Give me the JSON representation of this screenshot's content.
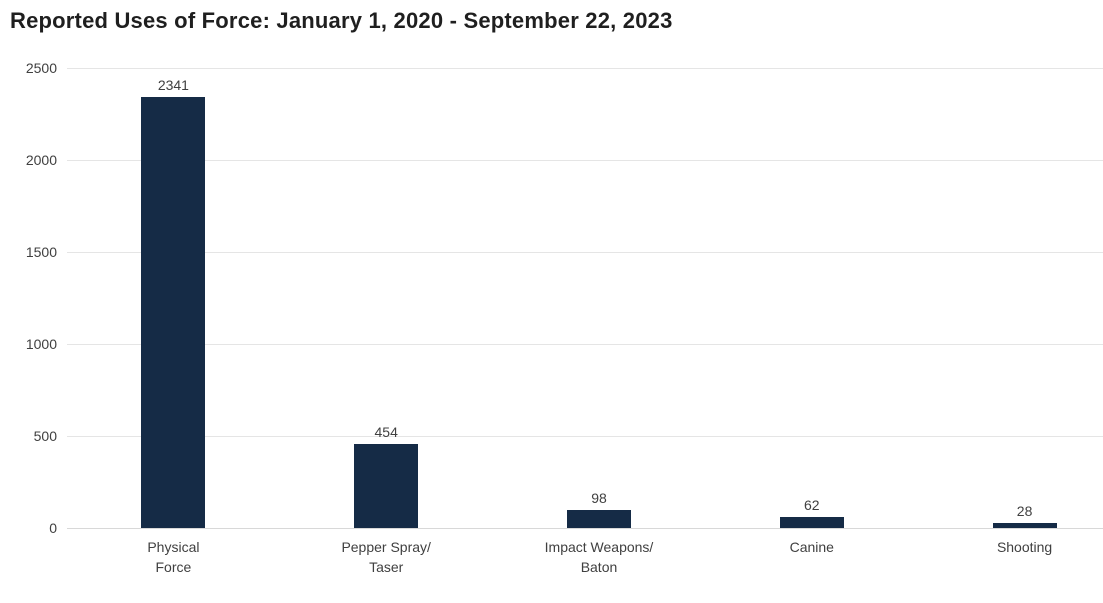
{
  "chart_data": {
    "type": "bar",
    "title": "Reported Uses of Force: January 1, 2020 - September 22, 2023",
    "categories": [
      "Physical\nForce",
      "Pepper Spray/\nTaser",
      "Impact Weapons/\nBaton",
      "Canine",
      "Shooting"
    ],
    "values": [
      2341,
      454,
      98,
      62,
      28
    ],
    "value_labels": [
      "2341",
      "454",
      "98",
      "62",
      "28"
    ],
    "xlabel": "",
    "ylabel": "",
    "ylim": [
      0,
      2500
    ],
    "yticks": [
      0,
      500,
      1000,
      1500,
      2000,
      2500
    ],
    "grid": "horizontal-gridlines-on",
    "legend": "none",
    "bar_color": "#152b46"
  },
  "colors": {
    "background": "#ffffff",
    "bar": "#152b46",
    "gridline": "#e5e5e5",
    "axis_line": "#d8d8d8",
    "title_text": "#1f1f1f",
    "label_text": "#404040"
  }
}
